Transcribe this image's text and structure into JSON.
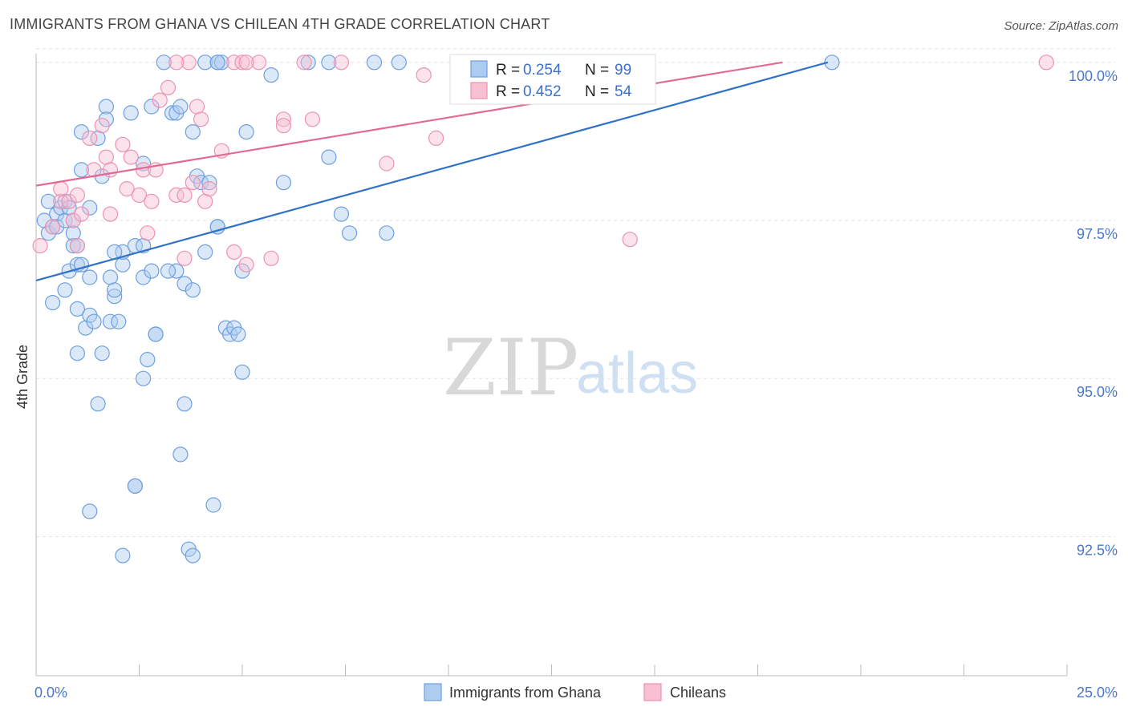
{
  "header": {
    "title": "IMMIGRANTS FROM GHANA VS CHILEAN 4TH GRADE CORRELATION CHART",
    "source": "Source: ZipAtlas.com"
  },
  "watermark": {
    "zip": "ZIP",
    "atlas": "atlas"
  },
  "colors": {
    "ghana_fill": "#aecbf0",
    "ghana_stroke": "#6f9fe0",
    "ghana_line": "#2f72c8",
    "chile_fill": "#f7bfd2",
    "chile_stroke": "#ec93b2",
    "chile_line": "#e06a94",
    "grid": "#e2e2e2",
    "axis": "#bbbbbb"
  },
  "legend_box": {
    "r_label": "R =",
    "n_label": "N =",
    "rows": [
      {
        "series": "ghana",
        "r": "0.254",
        "n": "99"
      },
      {
        "series": "chile",
        "r": "0.452",
        "n": "54"
      }
    ]
  },
  "chart_data": {
    "type": "scatter",
    "title": "IMMIGRANTS FROM GHANA VS CHILEAN 4TH GRADE CORRELATION CHART",
    "xlabel": "",
    "ylabel": "4th Grade",
    "xlim": [
      0,
      25
    ],
    "ylim": [
      90.3,
      100.2
    ],
    "x_tick_labels": [
      "0.0%",
      "25.0%"
    ],
    "y_ticks": [
      92.5,
      95.0,
      97.5,
      100.0
    ],
    "y_tick_labels": [
      "92.5%",
      "95.0%",
      "97.5%",
      "100.0%"
    ],
    "grid": true,
    "legend_position": "bottom",
    "series": [
      {
        "name": "Immigrants from Ghana",
        "key": "ghana",
        "r": 0.254,
        "n": 99,
        "trend": {
          "x": [
            0.0,
            19.2
          ],
          "y": [
            96.55,
            100.0
          ]
        },
        "points": [
          [
            0.2,
            97.5
          ],
          [
            0.3,
            97.3
          ],
          [
            0.3,
            97.8
          ],
          [
            0.4,
            97.4
          ],
          [
            0.5,
            97.6
          ],
          [
            0.5,
            97.4
          ],
          [
            0.6,
            97.7
          ],
          [
            0.7,
            97.8
          ],
          [
            0.7,
            97.5
          ],
          [
            0.8,
            97.7
          ],
          [
            0.9,
            97.5
          ],
          [
            0.9,
            97.1
          ],
          [
            0.9,
            97.3
          ],
          [
            0.4,
            96.2
          ],
          [
            0.7,
            96.4
          ],
          [
            0.8,
            96.7
          ],
          [
            1.0,
            96.8
          ],
          [
            1.0,
            97.1
          ],
          [
            1.1,
            96.8
          ],
          [
            1.0,
            95.4
          ],
          [
            1.0,
            96.1
          ],
          [
            1.2,
            95.8
          ],
          [
            1.3,
            96.0
          ],
          [
            1.3,
            96.6
          ],
          [
            1.3,
            97.7
          ],
          [
            1.1,
            98.9
          ],
          [
            1.1,
            98.3
          ],
          [
            1.6,
            98.2
          ],
          [
            1.5,
            98.8
          ],
          [
            1.7,
            99.3
          ],
          [
            1.7,
            99.1
          ],
          [
            1.8,
            96.6
          ],
          [
            1.9,
            96.3
          ],
          [
            1.9,
            96.4
          ],
          [
            1.4,
            95.9
          ],
          [
            1.6,
            95.4
          ],
          [
            1.5,
            94.6
          ],
          [
            1.8,
            95.9
          ],
          [
            2.0,
            95.9
          ],
          [
            2.1,
            96.8
          ],
          [
            2.1,
            97.0
          ],
          [
            1.9,
            97.0
          ],
          [
            2.3,
            99.2
          ],
          [
            2.6,
            98.4
          ],
          [
            2.4,
            97.1
          ],
          [
            2.6,
            97.1
          ],
          [
            2.6,
            96.6
          ],
          [
            2.8,
            96.7
          ],
          [
            2.7,
            95.3
          ],
          [
            2.9,
            95.7
          ],
          [
            2.9,
            95.7
          ],
          [
            2.6,
            95.0
          ],
          [
            2.4,
            93.3
          ],
          [
            3.1,
            100.0
          ],
          [
            2.8,
            99.3
          ],
          [
            3.3,
            99.2
          ],
          [
            3.4,
            99.2
          ],
          [
            3.5,
            99.3
          ],
          [
            3.4,
            96.7
          ],
          [
            3.2,
            96.7
          ],
          [
            3.6,
            96.5
          ],
          [
            3.8,
            96.4
          ],
          [
            3.6,
            94.6
          ],
          [
            3.5,
            93.8
          ],
          [
            3.7,
            92.3
          ],
          [
            3.8,
            92.2
          ],
          [
            4.1,
            100.0
          ],
          [
            3.8,
            98.9
          ],
          [
            3.9,
            98.2
          ],
          [
            4.0,
            98.1
          ],
          [
            4.2,
            98.1
          ],
          [
            4.1,
            97.0
          ],
          [
            4.4,
            100.0
          ],
          [
            4.5,
            100.0
          ],
          [
            4.4,
            100.0
          ],
          [
            4.4,
            97.4
          ],
          [
            4.4,
            97.4
          ],
          [
            4.6,
            95.8
          ],
          [
            4.7,
            95.7
          ],
          [
            4.8,
            95.8
          ],
          [
            4.9,
            95.7
          ],
          [
            5.0,
            96.7
          ],
          [
            5.0,
            95.1
          ],
          [
            5.1,
            98.9
          ],
          [
            4.3,
            93.0
          ],
          [
            5.7,
            99.8
          ],
          [
            6.0,
            98.1
          ],
          [
            6.6,
            100.0
          ],
          [
            7.1,
            100.0
          ],
          [
            7.1,
            98.5
          ],
          [
            7.4,
            97.6
          ],
          [
            7.6,
            97.3
          ],
          [
            8.2,
            100.0
          ],
          [
            8.5,
            97.3
          ],
          [
            8.8,
            100.0
          ],
          [
            2.4,
            93.3
          ],
          [
            1.3,
            92.9
          ],
          [
            2.1,
            92.2
          ],
          [
            19.3,
            100.0
          ]
        ]
      },
      {
        "name": "Chileans",
        "key": "chile",
        "r": 0.452,
        "n": 54,
        "trend": {
          "x": [
            0.0,
            18.1
          ],
          "y": [
            98.05,
            100.0
          ]
        },
        "points": [
          [
            0.1,
            97.1
          ],
          [
            0.4,
            97.4
          ],
          [
            0.6,
            97.8
          ],
          [
            0.6,
            98.0
          ],
          [
            0.8,
            97.8
          ],
          [
            0.9,
            97.5
          ],
          [
            1.0,
            97.1
          ],
          [
            1.0,
            97.9
          ],
          [
            1.1,
            97.6
          ],
          [
            1.3,
            98.8
          ],
          [
            1.4,
            98.3
          ],
          [
            1.6,
            99.0
          ],
          [
            1.7,
            98.5
          ],
          [
            1.8,
            98.3
          ],
          [
            1.8,
            97.6
          ],
          [
            2.1,
            98.7
          ],
          [
            2.2,
            98.0
          ],
          [
            2.3,
            98.5
          ],
          [
            2.5,
            97.9
          ],
          [
            2.6,
            98.3
          ],
          [
            2.7,
            97.3
          ],
          [
            2.8,
            97.8
          ],
          [
            2.9,
            98.3
          ],
          [
            3.0,
            99.4
          ],
          [
            3.2,
            99.6
          ],
          [
            3.4,
            97.9
          ],
          [
            3.6,
            97.9
          ],
          [
            3.6,
            96.9
          ],
          [
            3.7,
            100.0
          ],
          [
            3.8,
            98.1
          ],
          [
            3.9,
            99.3
          ],
          [
            4.0,
            99.1
          ],
          [
            4.1,
            97.8
          ],
          [
            4.2,
            98.0
          ],
          [
            4.5,
            98.6
          ],
          [
            4.8,
            97.0
          ],
          [
            4.8,
            100.0
          ],
          [
            5.0,
            100.0
          ],
          [
            5.1,
            96.8
          ],
          [
            5.4,
            100.0
          ],
          [
            5.7,
            96.9
          ],
          [
            6.0,
            99.1
          ],
          [
            6.5,
            100.0
          ],
          [
            6.7,
            99.1
          ],
          [
            7.4,
            100.0
          ],
          [
            8.5,
            98.4
          ],
          [
            9.4,
            99.8
          ],
          [
            9.7,
            98.8
          ],
          [
            14.0,
            100.0
          ],
          [
            14.4,
            97.2
          ],
          [
            3.4,
            100.0
          ],
          [
            5.1,
            100.0
          ],
          [
            6.0,
            99.0
          ],
          [
            24.5,
            100.0
          ]
        ]
      }
    ]
  }
}
